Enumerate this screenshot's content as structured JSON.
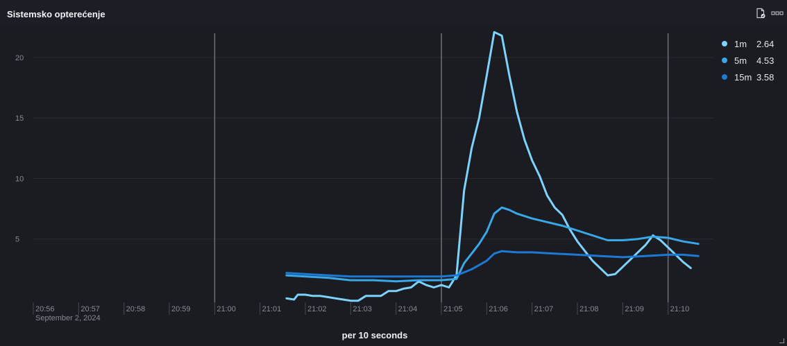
{
  "panel": {
    "title": "Sistemsko opterećenje",
    "footer_label": "per 10 seconds",
    "icons": [
      "file-check-icon",
      "more-options-icon"
    ]
  },
  "legend": [
    {
      "name": "1m",
      "value": "2.64",
      "color": "#7dd3fc"
    },
    {
      "name": "5m",
      "value": "4.53",
      "color": "#38a8e8"
    },
    {
      "name": "15m",
      "value": "3.58",
      "color": "#1c7ad4"
    }
  ],
  "chart_data": {
    "type": "line",
    "title": "Sistemsko opterećenje",
    "xlabel": "per 10 seconds",
    "ylabel": "",
    "ylim": [
      0,
      22
    ],
    "yticks": [
      5,
      10,
      15,
      20
    ],
    "x_unit": "minutes",
    "xlim": [
      "20:56",
      "21:11"
    ],
    "date_label": "September 2, 2024",
    "xticks": [
      "20:56",
      "20:57",
      "20:58",
      "20:59",
      "21:00",
      "21:01",
      "21:02",
      "21:03",
      "21:04",
      "21:05",
      "21:06",
      "21:07",
      "21:08",
      "21:09",
      "21:10"
    ],
    "annotation_lines": [
      "21:00",
      "21:05",
      "21:10"
    ],
    "grid": true,
    "legend_position": "top-right",
    "series": [
      {
        "name": "1m",
        "color": "#7dd3fc",
        "points": [
          [
            "21:01:35",
            0.1
          ],
          [
            "21:01:45",
            0.0
          ],
          [
            "21:01:50",
            0.4
          ],
          [
            "21:02:00",
            0.4
          ],
          [
            "21:02:10",
            0.3
          ],
          [
            "21:02:20",
            0.3
          ],
          [
            "21:02:30",
            0.2
          ],
          [
            "21:02:40",
            0.1
          ],
          [
            "21:02:50",
            0.0
          ],
          [
            "21:03:00",
            -0.1
          ],
          [
            "21:03:10",
            -0.1
          ],
          [
            "21:03:20",
            0.3
          ],
          [
            "21:03:30",
            0.3
          ],
          [
            "21:03:40",
            0.3
          ],
          [
            "21:03:50",
            0.7
          ],
          [
            "21:04:00",
            0.7
          ],
          [
            "21:04:10",
            0.9
          ],
          [
            "21:04:20",
            1.0
          ],
          [
            "21:04:30",
            1.5
          ],
          [
            "21:04:40",
            1.2
          ],
          [
            "21:04:50",
            1.0
          ],
          [
            "21:05:00",
            1.2
          ],
          [
            "21:05:10",
            1.0
          ],
          [
            "21:05:20",
            2.0
          ],
          [
            "21:05:30",
            9.0
          ],
          [
            "21:05:40",
            12.5
          ],
          [
            "21:05:50",
            15.0
          ],
          [
            "21:06:00",
            18.5
          ],
          [
            "21:06:10",
            22.1
          ],
          [
            "21:06:20",
            21.8
          ],
          [
            "21:06:30",
            18.5
          ],
          [
            "21:06:40",
            15.5
          ],
          [
            "21:06:50",
            13.2
          ],
          [
            "21:07:00",
            11.5
          ],
          [
            "21:07:10",
            10.2
          ],
          [
            "21:07:20",
            8.6
          ],
          [
            "21:07:30",
            7.6
          ],
          [
            "21:07:40",
            7.0
          ],
          [
            "21:07:50",
            5.8
          ],
          [
            "21:08:00",
            4.8
          ],
          [
            "21:08:10",
            4.0
          ],
          [
            "21:08:20",
            3.2
          ],
          [
            "21:08:30",
            2.6
          ],
          [
            "21:08:40",
            2.0
          ],
          [
            "21:08:50",
            2.1
          ],
          [
            "21:09:00",
            2.7
          ],
          [
            "21:09:10",
            3.3
          ],
          [
            "21:09:20",
            3.9
          ],
          [
            "21:09:30",
            4.5
          ],
          [
            "21:09:40",
            5.3
          ],
          [
            "21:09:50",
            4.9
          ],
          [
            "21:10:00",
            4.3
          ],
          [
            "21:10:10",
            3.7
          ],
          [
            "21:10:20",
            3.1
          ],
          [
            "21:10:30",
            2.6
          ]
        ]
      },
      {
        "name": "5m",
        "color": "#38a8e8",
        "points": [
          [
            "21:01:35",
            2.0
          ],
          [
            "21:02:00",
            1.9
          ],
          [
            "21:02:30",
            1.8
          ],
          [
            "21:03:00",
            1.6
          ],
          [
            "21:03:30",
            1.6
          ],
          [
            "21:04:00",
            1.5
          ],
          [
            "21:04:30",
            1.6
          ],
          [
            "21:05:00",
            1.6
          ],
          [
            "21:05:20",
            1.7
          ],
          [
            "21:05:30",
            3.0
          ],
          [
            "21:05:40",
            3.8
          ],
          [
            "21:05:50",
            4.6
          ],
          [
            "21:06:00",
            5.6
          ],
          [
            "21:06:10",
            7.1
          ],
          [
            "21:06:20",
            7.6
          ],
          [
            "21:06:30",
            7.4
          ],
          [
            "21:06:40",
            7.1
          ],
          [
            "21:07:00",
            6.7
          ],
          [
            "21:07:20",
            6.4
          ],
          [
            "21:07:40",
            6.1
          ],
          [
            "21:08:00",
            5.7
          ],
          [
            "21:08:20",
            5.3
          ],
          [
            "21:08:40",
            4.9
          ],
          [
            "21:09:00",
            4.9
          ],
          [
            "21:09:20",
            5.0
          ],
          [
            "21:09:40",
            5.2
          ],
          [
            "21:10:00",
            5.1
          ],
          [
            "21:10:20",
            4.8
          ],
          [
            "21:10:40",
            4.6
          ]
        ]
      },
      {
        "name": "15m",
        "color": "#1c7ad4",
        "points": [
          [
            "21:01:35",
            2.2
          ],
          [
            "21:02:00",
            2.1
          ],
          [
            "21:02:30",
            2.0
          ],
          [
            "21:03:00",
            1.9
          ],
          [
            "21:03:30",
            1.9
          ],
          [
            "21:04:00",
            1.9
          ],
          [
            "21:04:30",
            1.9
          ],
          [
            "21:05:00",
            1.9
          ],
          [
            "21:05:20",
            2.0
          ],
          [
            "21:05:40",
            2.5
          ],
          [
            "21:06:00",
            3.2
          ],
          [
            "21:06:10",
            3.8
          ],
          [
            "21:06:20",
            4.0
          ],
          [
            "21:06:40",
            3.9
          ],
          [
            "21:07:00",
            3.9
          ],
          [
            "21:07:30",
            3.8
          ],
          [
            "21:08:00",
            3.7
          ],
          [
            "21:08:30",
            3.6
          ],
          [
            "21:09:00",
            3.5
          ],
          [
            "21:09:30",
            3.6
          ],
          [
            "21:10:00",
            3.7
          ],
          [
            "21:10:20",
            3.7
          ],
          [
            "21:10:40",
            3.6
          ]
        ]
      }
    ]
  }
}
